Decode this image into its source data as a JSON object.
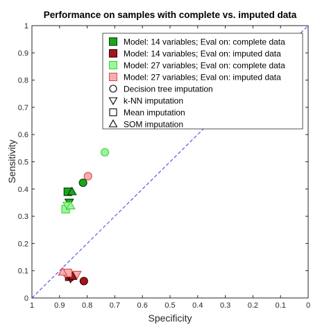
{
  "chart_data": {
    "type": "scatter",
    "title": "Performance on samples with complete vs. imputed data",
    "xlabel": "Specificity",
    "ylabel": "Sensitivity",
    "xlim": [
      1,
      0
    ],
    "ylim": [
      0,
      1
    ],
    "x_reversed": true,
    "xticks": [
      1,
      0.9,
      0.8,
      0.7,
      0.6,
      0.5,
      0.4,
      0.3,
      0.2,
      0.1,
      0
    ],
    "yticks": [
      0,
      0.1,
      0.2,
      0.3,
      0.4,
      0.5,
      0.6,
      0.7,
      0.8,
      0.9,
      1
    ],
    "xtick_labels": [
      "1",
      "0.9",
      "0.8",
      "0.7",
      "0.6",
      "0.5",
      "0.4",
      "0.3",
      "0.2",
      "0.1",
      "0"
    ],
    "ytick_labels": [
      "0",
      "0.1",
      "0.2",
      "0.3",
      "0.4",
      "0.5",
      "0.6",
      "0.7",
      "0.8",
      "0.9",
      "1"
    ],
    "grid": false,
    "diagonal_reference_line": true,
    "legend_position": "top-right",
    "series": [
      {
        "name": "Model: 14 variables; Eval on: complete data",
        "fill": "#1aa61a",
        "stroke": "#0a3a0a",
        "points": [
          {
            "marker": "circle",
            "x": 0.815,
            "y": 0.423
          },
          {
            "marker": "triangle-down",
            "x": 0.865,
            "y": 0.352
          },
          {
            "marker": "square",
            "x": 0.87,
            "y": 0.39
          },
          {
            "marker": "triangle-up",
            "x": 0.855,
            "y": 0.39
          }
        ]
      },
      {
        "name": "Model: 14 variables; Eval on: imputed data",
        "fill": "#a8141b",
        "stroke": "#2a0305",
        "points": [
          {
            "marker": "circle",
            "x": 0.812,
            "y": 0.062
          },
          {
            "marker": "triangle-down",
            "x": 0.86,
            "y": 0.072
          },
          {
            "marker": "square",
            "x": 0.865,
            "y": 0.078
          },
          {
            "marker": "triangle-up",
            "x": 0.853,
            "y": 0.079
          }
        ]
      },
      {
        "name": "Model: 27 variables; Eval on: complete data",
        "fill": "#99f799",
        "stroke": "#3fcc3f",
        "points": [
          {
            "marker": "circle",
            "x": 0.736,
            "y": 0.535
          },
          {
            "marker": "triangle-down",
            "x": 0.872,
            "y": 0.34
          },
          {
            "marker": "square",
            "x": 0.878,
            "y": 0.326
          },
          {
            "marker": "triangle-up",
            "x": 0.86,
            "y": 0.338
          }
        ]
      },
      {
        "name": "Model: 27 variables; Eval on: imputed data",
        "fill": "#f4b0b0",
        "stroke": "#d84848",
        "points": [
          {
            "marker": "circle",
            "x": 0.797,
            "y": 0.447
          },
          {
            "marker": "triangle-down",
            "x": 0.837,
            "y": 0.087
          },
          {
            "marker": "square",
            "x": 0.87,
            "y": 0.092
          },
          {
            "marker": "triangle-up",
            "x": 0.889,
            "y": 0.095
          }
        ]
      }
    ],
    "marker_legend": [
      {
        "marker": "circle",
        "label": "Decision tree imputation"
      },
      {
        "marker": "triangle-down",
        "label": "k-NN imputation"
      },
      {
        "marker": "square",
        "label": "Mean imputation"
      },
      {
        "marker": "triangle-up",
        "label": "SOM imputation"
      }
    ]
  }
}
